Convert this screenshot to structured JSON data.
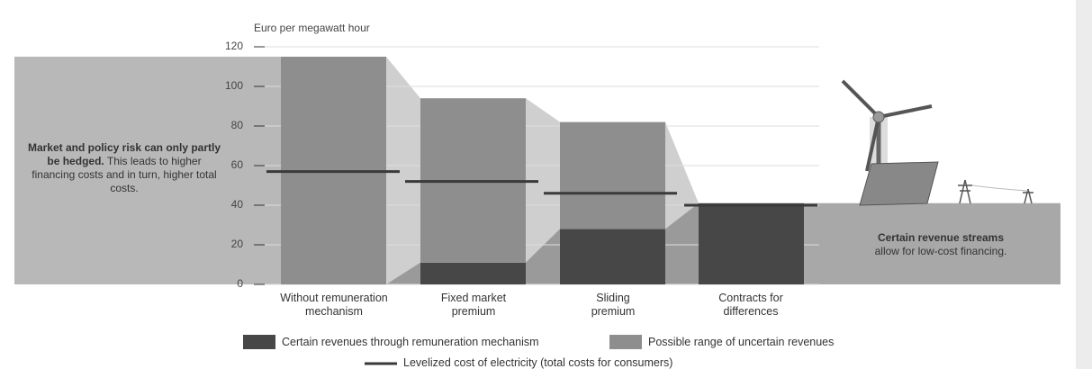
{
  "chart_data": {
    "type": "bar",
    "stacked": true,
    "y_label": "Euro per megawatt hour",
    "categories": [
      "Without remuneration mechanism",
      "Fixed market premium",
      "Sliding premium",
      "Contracts for differences"
    ],
    "series": [
      {
        "name": "Certain revenues through remuneration mechanism",
        "color": "#474747",
        "values": [
          0,
          11,
          28,
          41
        ]
      },
      {
        "name": "Possible range of uncertain revenues",
        "color": "#8e8e8e",
        "values": [
          115,
          83,
          54,
          0
        ]
      },
      {
        "name": "Levelized cost of electricity (total costs for consumers)",
        "color": "#3a3a3a",
        "type": "line",
        "values": [
          57,
          52,
          46,
          40
        ]
      }
    ],
    "ylim": [
      0,
      120
    ],
    "yticks": [
      0,
      20,
      40,
      60,
      80,
      100,
      120
    ],
    "grid": true,
    "annotations": {
      "left": {
        "bold": "Market and policy risk can only partly be hedged.",
        "text": "This leads to higher financing costs and in turn, higher total costs."
      },
      "right": {
        "bold": "Certain revenue streams",
        "text": "allow for low-cost financing."
      }
    }
  }
}
